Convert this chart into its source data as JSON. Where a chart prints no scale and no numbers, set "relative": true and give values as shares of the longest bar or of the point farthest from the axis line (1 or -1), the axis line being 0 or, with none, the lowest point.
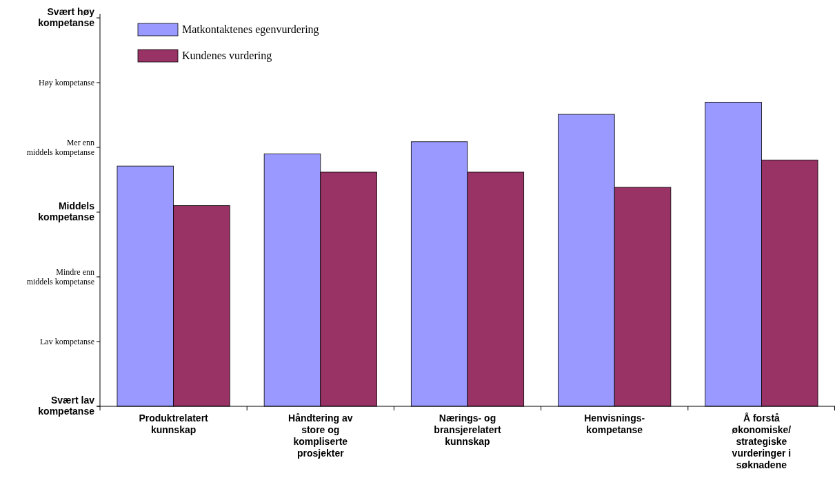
{
  "chart_data": {
    "type": "bar",
    "categories": [
      "Produktrelatert kunnskap",
      "Håndtering av store og kompliserte prosjekter",
      "Nærings- og bransjerelatert kunnskap",
      "Henvisnings-kompetanse",
      "Å forstå økonomiske/strategiske vurderinger i søknadene"
    ],
    "series": [
      {
        "name": "Matkontaktenes egenvurdering",
        "color": "#9999ff",
        "values": [
          0.79,
          0.83,
          0.87,
          0.96,
          1
        ]
      },
      {
        "name": "Kundenes vurdering",
        "color": "#993366",
        "values": [
          0.66,
          0.77,
          0.77,
          0.72,
          0.81
        ]
      }
    ],
    "relative": true,
    "annotations": [
      "Svært lav kompetanse",
      "Lav kompetanse",
      "Mindre enn middels kompetanse",
      "Middels kompetanse",
      "Mer enn middels kompetanse",
      "Høy kompetanse",
      "Svært høy kompetanse"
    ],
    "legend": "top left",
    "grid": false
  }
}
